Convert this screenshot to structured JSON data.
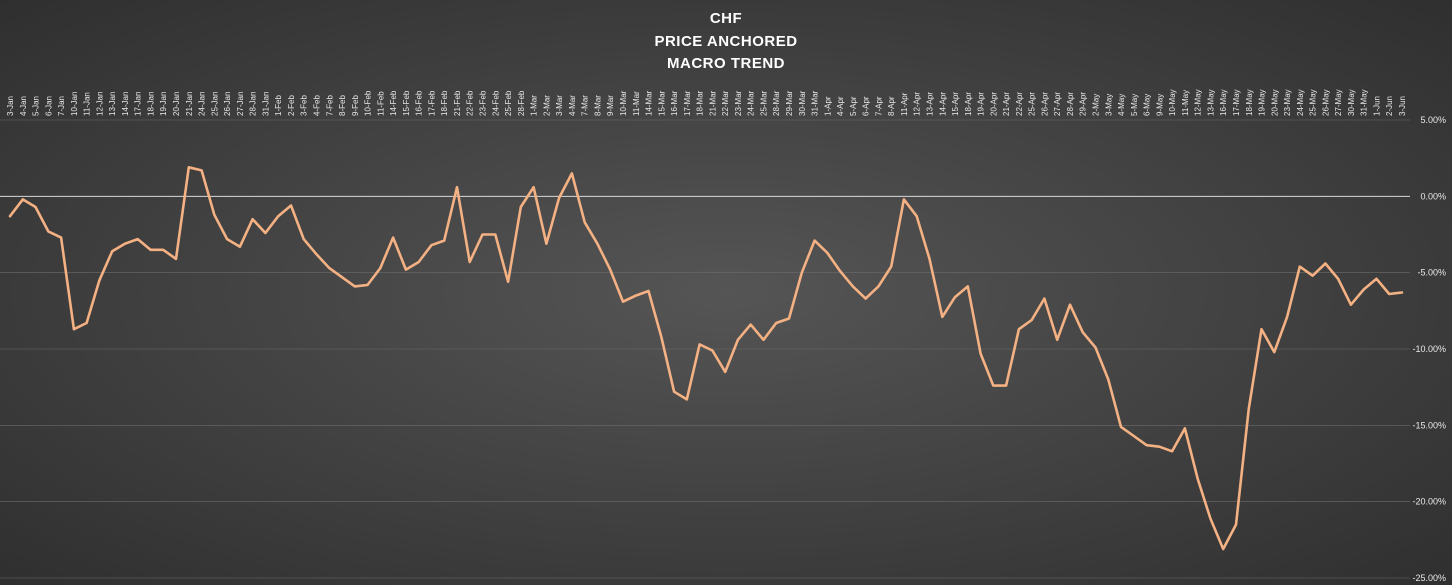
{
  "chart_data": {
    "type": "line",
    "title": [
      "CHF",
      "PRICE ANCHORED",
      "MACRO TREND"
    ],
    "xlabel": "",
    "ylabel": "",
    "ylim": [
      -25,
      5
    ],
    "y_ticks": [
      "5.00%",
      "0.00%",
      "-5.00%",
      "-10.00%",
      "-15.00%",
      "-20.00%",
      "-25.00%"
    ],
    "y_tick_values": [
      5,
      0,
      -5,
      -10,
      -15,
      -20,
      -25
    ],
    "grid": true,
    "line_color": "#f4b183",
    "categories": [
      "3-Jan",
      "4-Jan",
      "5-Jan",
      "6-Jan",
      "7-Jan",
      "10-Jan",
      "11-Jan",
      "12-Jan",
      "13-Jan",
      "14-Jan",
      "17-Jan",
      "18-Jan",
      "19-Jan",
      "20-Jan",
      "21-Jan",
      "24-Jan",
      "25-Jan",
      "26-Jan",
      "27-Jan",
      "28-Jan",
      "31-Jan",
      "1-Feb",
      "2-Feb",
      "3-Feb",
      "4-Feb",
      "7-Feb",
      "8-Feb",
      "9-Feb",
      "10-Feb",
      "11-Feb",
      "14-Feb",
      "15-Feb",
      "16-Feb",
      "17-Feb",
      "18-Feb",
      "21-Feb",
      "22-Feb",
      "23-Feb",
      "24-Feb",
      "25-Feb",
      "28-Feb",
      "1-Mar",
      "2-Mar",
      "3-Mar",
      "4-Mar",
      "7-Mar",
      "8-Mar",
      "9-Mar",
      "10-Mar",
      "11-Mar",
      "14-Mar",
      "15-Mar",
      "16-Mar",
      "17-Mar",
      "18-Mar",
      "21-Mar",
      "22-Mar",
      "23-Mar",
      "24-Mar",
      "25-Mar",
      "28-Mar",
      "29-Mar",
      "30-Mar",
      "31-Mar",
      "1-Apr",
      "4-Apr",
      "5-Apr",
      "6-Apr",
      "7-Apr",
      "8-Apr",
      "11-Apr",
      "12-Apr",
      "13-Apr",
      "14-Apr",
      "15-Apr",
      "18-Apr",
      "19-Apr",
      "20-Apr",
      "21-Apr",
      "22-Apr",
      "25-Apr",
      "26-Apr",
      "27-Apr",
      "28-Apr",
      "29-Apr",
      "2-May",
      "3-May",
      "4-May",
      "5-May",
      "6-May",
      "9-May",
      "10-May",
      "11-May",
      "12-May",
      "13-May",
      "16-May",
      "17-May",
      "18-May",
      "19-May",
      "20-May",
      "23-May",
      "24-May",
      "25-May",
      "26-May",
      "27-May",
      "30-May",
      "31-May",
      "1-Jun",
      "2-Jun",
      "3-Jun"
    ],
    "values": [
      -1.3,
      -0.2,
      -0.7,
      -2.3,
      -2.7,
      -8.7,
      -8.3,
      -5.5,
      -3.6,
      -3.1,
      -2.8,
      -3.5,
      -3.5,
      -4.1,
      1.9,
      1.7,
      -1.2,
      -2.8,
      -3.3,
      -1.5,
      -2.4,
      -1.3,
      -0.6,
      -2.8,
      -3.8,
      -4.7,
      -5.3,
      -5.9,
      -5.8,
      -4.7,
      -2.7,
      -4.8,
      -4.3,
      -3.2,
      -2.9,
      0.6,
      -4.3,
      -2.5,
      -2.5,
      -5.6,
      -0.7,
      0.6,
      -3.1,
      -0.1,
      1.5,
      -1.7,
      -3.1,
      -4.8,
      -6.9,
      -6.5,
      -6.2,
      -9.2,
      -12.8,
      -13.3,
      -9.7,
      -10.1,
      -11.5,
      -9.4,
      -8.4,
      -9.4,
      -8.3,
      -8.0,
      -5.0,
      -2.9,
      -3.7,
      -4.9,
      -5.9,
      -6.7,
      -5.9,
      -4.6,
      -0.2,
      -1.3,
      -4.1,
      -7.9,
      -6.6,
      -5.9,
      -10.3,
      -12.4,
      -12.4,
      -8.7,
      -8.1,
      -6.7,
      -9.4,
      -7.1,
      -8.9,
      -9.9,
      -12.0,
      -15.1,
      -15.7,
      -16.3,
      -16.4,
      -16.7,
      -15.2,
      -18.5,
      -21.1,
      -23.1,
      -21.5,
      -13.9,
      -8.7,
      -10.2,
      -7.9,
      -4.6,
      -5.2,
      -4.4,
      -5.4,
      -7.1,
      -6.1,
      -5.4,
      -6.4,
      -6.3
    ]
  }
}
